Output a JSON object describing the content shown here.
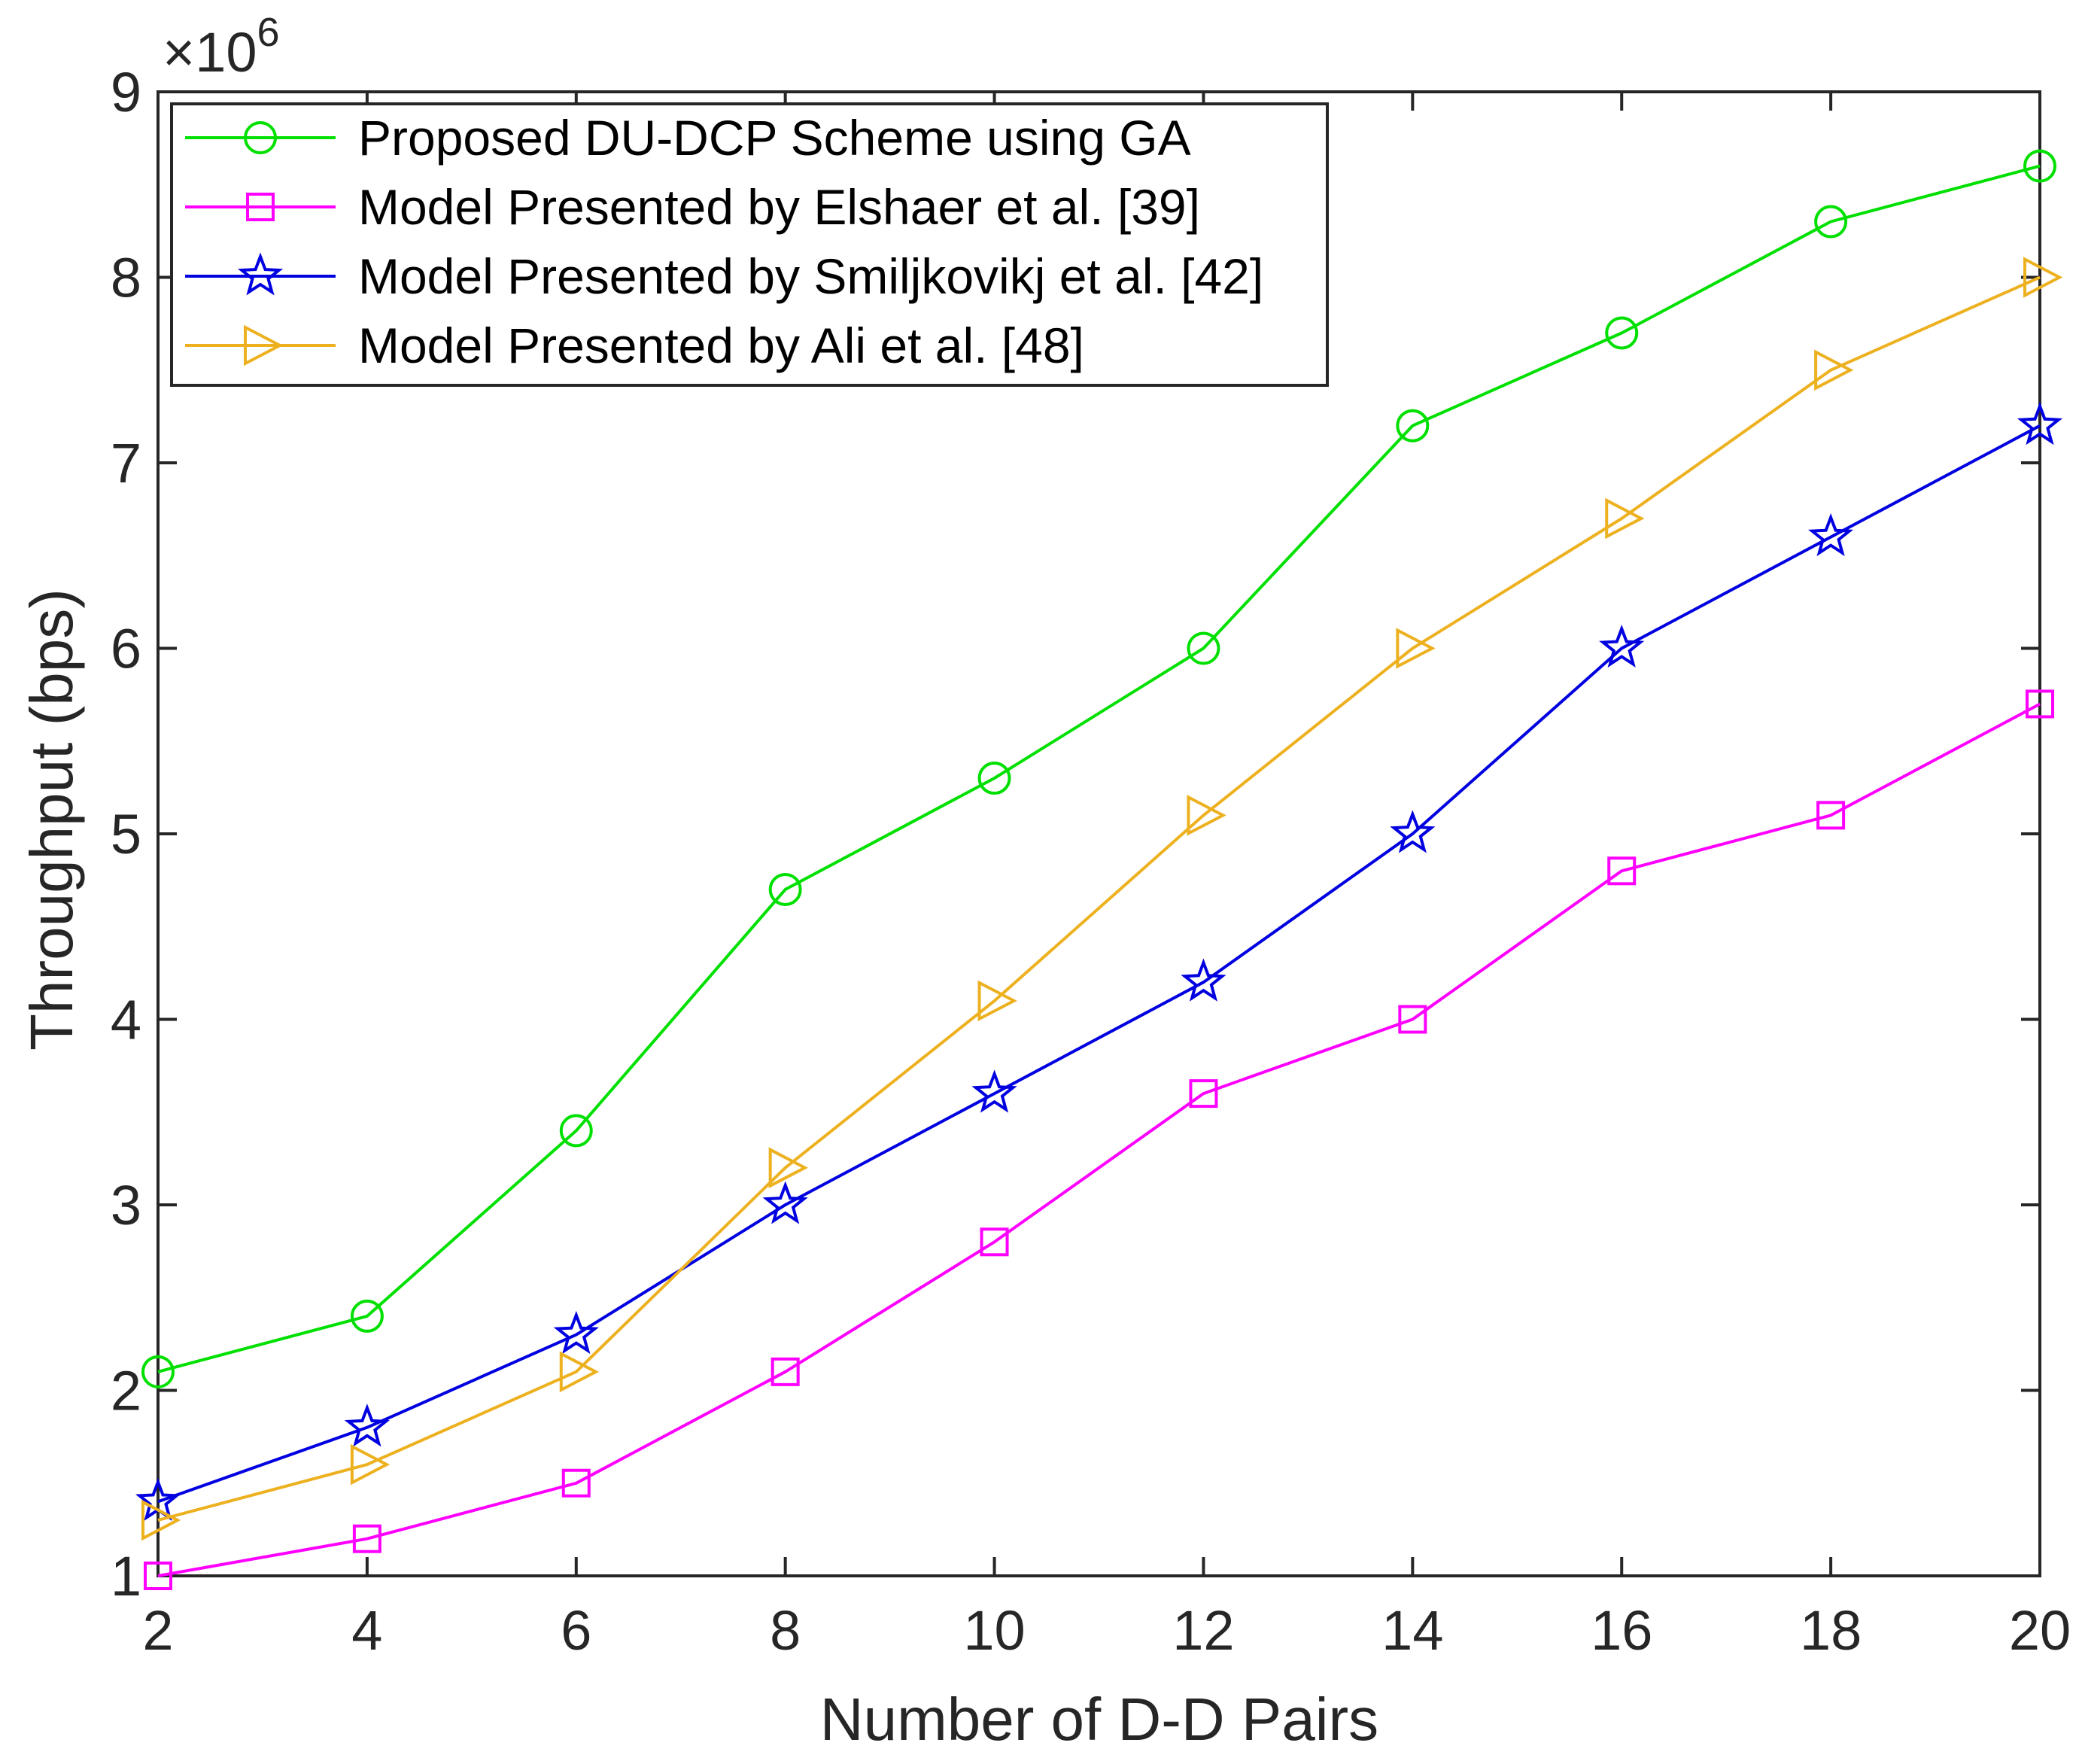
{
  "chart_data": {
    "type": "line",
    "title": "",
    "xlabel": "Number of D-D Pairs",
    "ylabel": "Throughput (bps)",
    "x": [
      2,
      4,
      6,
      8,
      10,
      12,
      14,
      16,
      18,
      20
    ],
    "xlim": [
      2,
      20
    ],
    "ylim": [
      1,
      9
    ],
    "xticks": [
      2,
      4,
      6,
      8,
      10,
      12,
      14,
      16,
      18,
      20
    ],
    "yticks": [
      1,
      2,
      3,
      4,
      5,
      6,
      7,
      8,
      9
    ],
    "y_exponent": {
      "base": "×10",
      "power": "6"
    },
    "grid": false,
    "legend_position": "top-left",
    "series": [
      {
        "name": "Proposed DU-DCP Scheme using GA",
        "color": "#00e000",
        "marker": "circle",
        "values": [
          2.1,
          2.4,
          3.4,
          4.7,
          5.3,
          6.0,
          7.2,
          7.7,
          8.3,
          8.6
        ]
      },
      {
        "name": "Model Presented by Elshaer et al. [39]",
        "color": "#ff00ff",
        "marker": "square",
        "values": [
          1.0,
          1.2,
          1.5,
          2.1,
          2.8,
          3.6,
          4.0,
          4.8,
          5.1,
          5.7
        ]
      },
      {
        "name": "Model Presented by Smiljkovikj et al. [42]",
        "color": "#0000e0",
        "marker": "star",
        "values": [
          1.4,
          1.8,
          2.3,
          3.0,
          3.6,
          4.2,
          5.0,
          6.0,
          6.6,
          7.2
        ]
      },
      {
        "name": "Model Presented by Ali et al. [48]",
        "color": "#edb120",
        "marker": "triangle-right",
        "values": [
          1.3,
          1.6,
          2.1,
          3.2,
          4.1,
          5.1,
          6.0,
          6.7,
          7.5,
          8.0
        ]
      }
    ]
  }
}
